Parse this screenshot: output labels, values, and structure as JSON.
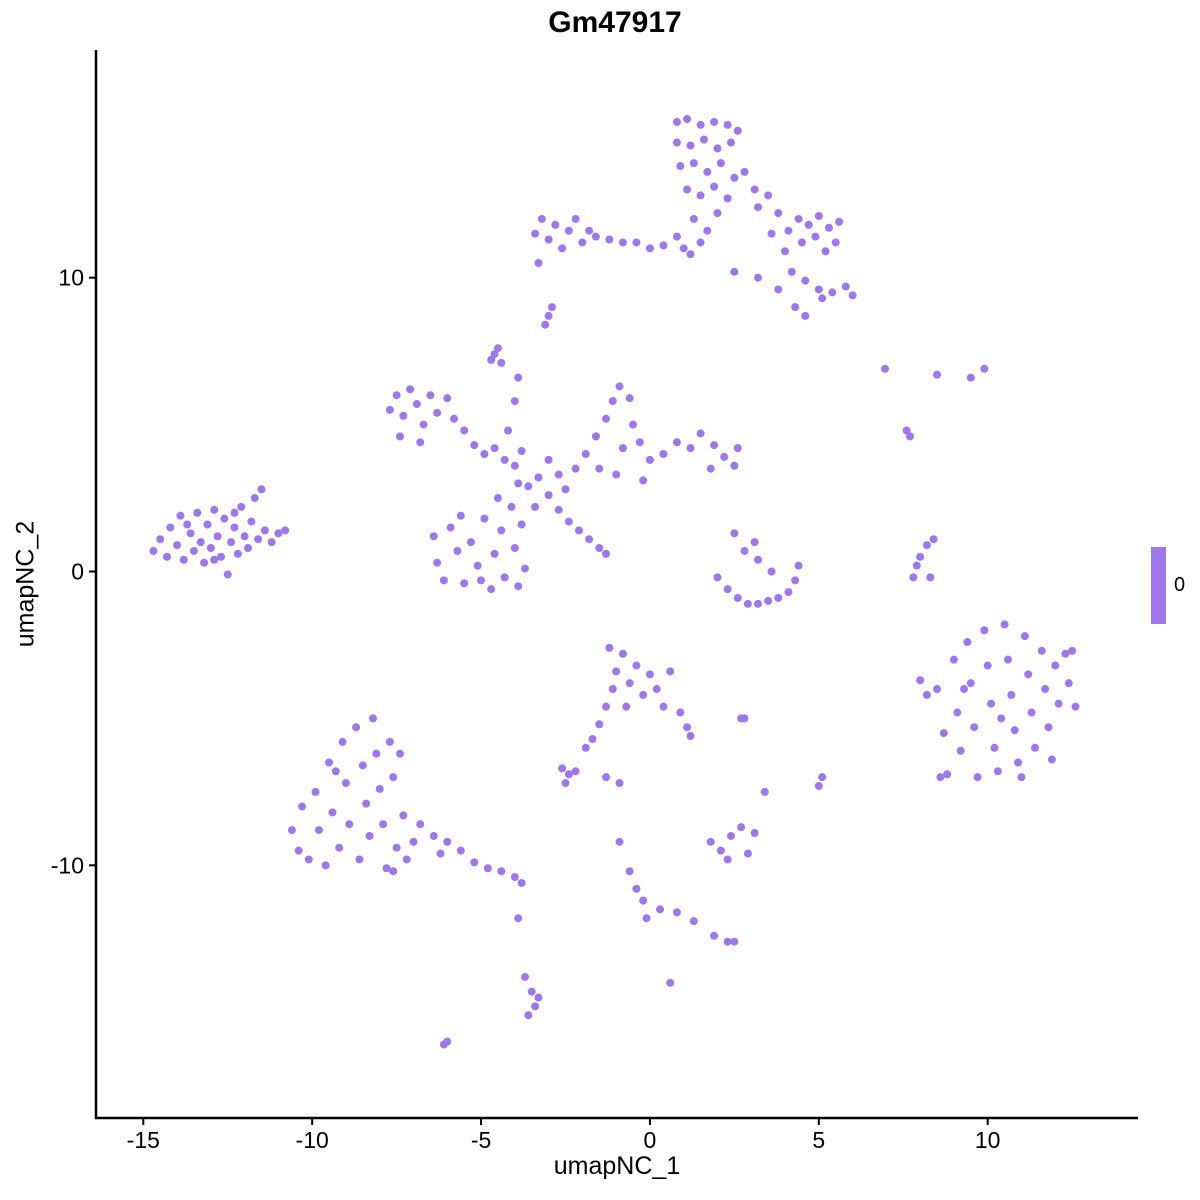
{
  "chart_data": {
    "type": "scatter",
    "title": "Gm47917",
    "xlabel": "umapNC_1",
    "ylabel": "umapNC_2",
    "xlim": [
      -16.4,
      14.45
    ],
    "ylim": [
      -18.6,
      17.75
    ],
    "xticks": [
      -15,
      -10,
      -5,
      0,
      5,
      10
    ],
    "yticks": [
      -10,
      0,
      10
    ],
    "xtick_labels": [
      "-15",
      "-10",
      "-5",
      "0",
      "5",
      "10"
    ],
    "ytick_labels": [
      "-10",
      "0",
      "10"
    ],
    "grid": false,
    "legend": {
      "position": "right",
      "type": "colorbar",
      "labels": [
        "0"
      ],
      "color": "#9E77E8"
    },
    "point_color": "#9E77E8",
    "expression_value": 0,
    "points": [
      [
        -14.7,
        0.7
      ],
      [
        -14.5,
        1.1
      ],
      [
        -14.3,
        0.5
      ],
      [
        -14.2,
        1.5
      ],
      [
        -14,
        0.9
      ],
      [
        -13.9,
        1.9
      ],
      [
        -13.8,
        0.4
      ],
      [
        -13.6,
        1.3
      ],
      [
        -13.5,
        0.7
      ],
      [
        -13.4,
        2.0
      ],
      [
        -13.3,
        1.0
      ],
      [
        -13.2,
        0.3
      ],
      [
        -13.1,
        1.6
      ],
      [
        -13,
        0.8
      ],
      [
        -12.9,
        2.1
      ],
      [
        -12.8,
        1.2
      ],
      [
        -12.7,
        0.5
      ],
      [
        -12.6,
        1.8
      ],
      [
        -12.5,
        -0.1
      ],
      [
        -12.4,
        1.0
      ],
      [
        -12.3,
        1.5
      ],
      [
        -12.2,
        0.6
      ],
      [
        -12.1,
        2.2
      ],
      [
        -12,
        1.2
      ],
      [
        -11.9,
        0.8
      ],
      [
        -11.8,
        1.7
      ],
      [
        -11.7,
        2.5
      ],
      [
        -11.6,
        1.1
      ],
      [
        -11.5,
        2.8
      ],
      [
        -11.4,
        1.4
      ],
      [
        -11.2,
        1.0
      ],
      [
        -11,
        1.3
      ],
      [
        -10.8,
        1.4
      ],
      [
        -13.7,
        1.6
      ],
      [
        -12.9,
        0.4
      ],
      [
        -12.3,
        2.0
      ],
      [
        -3.4,
        11.5
      ],
      [
        -3.2,
        12.0
      ],
      [
        -3.0,
        11.3
      ],
      [
        -2.8,
        11.8
      ],
      [
        -2.6,
        11.0
      ],
      [
        -2.4,
        11.6
      ],
      [
        -2.2,
        12.0
      ],
      [
        -2.0,
        11.2
      ],
      [
        -1.8,
        11.6
      ],
      [
        -1.6,
        11.4
      ],
      [
        -3.3,
        10.5
      ],
      [
        -1.2,
        11.3
      ],
      [
        -0.8,
        11.2
      ],
      [
        -0.4,
        11.2
      ],
      [
        0.0,
        11.0
      ],
      [
        0.4,
        11.1
      ],
      [
        0.8,
        11.4
      ],
      [
        1.0,
        11.0
      ],
      [
        1.2,
        10.8
      ],
      [
        1.5,
        11.2
      ],
      [
        0.8,
        15.3
      ],
      [
        1.1,
        15.4
      ],
      [
        1.5,
        15.2
      ],
      [
        1.9,
        15.3
      ],
      [
        2.3,
        15.2
      ],
      [
        2.6,
        15.0
      ],
      [
        0.8,
        14.6
      ],
      [
        1.2,
        14.5
      ],
      [
        1.6,
        14.7
      ],
      [
        2.0,
        14.4
      ],
      [
        2.4,
        14.6
      ],
      [
        0.9,
        13.8
      ],
      [
        1.3,
        13.9
      ],
      [
        1.7,
        13.6
      ],
      [
        2.1,
        13.9
      ],
      [
        2.5,
        13.4
      ],
      [
        1.1,
        13.0
      ],
      [
        1.5,
        12.8
      ],
      [
        1.9,
        13.1
      ],
      [
        2.3,
        12.7
      ],
      [
        1.3,
        12.0
      ],
      [
        1.7,
        11.6
      ],
      [
        2.0,
        12.2
      ],
      [
        2.8,
        13.6
      ],
      [
        3.1,
        13.0
      ],
      [
        3.2,
        12.4
      ],
      [
        3.5,
        12.8
      ],
      [
        3.8,
        12.2
      ],
      [
        4.1,
        11.6
      ],
      [
        4.4,
        12.0
      ],
      [
        4.7,
        11.8
      ],
      [
        5.0,
        12.1
      ],
      [
        5.3,
        11.7
      ],
      [
        5.6,
        11.9
      ],
      [
        3.6,
        11.5
      ],
      [
        4.0,
        10.9
      ],
      [
        4.5,
        11.2
      ],
      [
        4.9,
        11.4
      ],
      [
        5.2,
        10.9
      ],
      [
        5.5,
        11.2
      ],
      [
        4.2,
        10.2
      ],
      [
        4.6,
        9.9
      ],
      [
        5.0,
        9.6
      ],
      [
        5.4,
        9.5
      ],
      [
        5.8,
        9.7
      ],
      [
        6.0,
        9.4
      ],
      [
        4.3,
        9.0
      ],
      [
        4.6,
        8.7
      ],
      [
        5.1,
        9.3
      ],
      [
        2.5,
        10.2
      ],
      [
        3.2,
        10.0
      ],
      [
        3.8,
        9.6
      ],
      [
        -3.0,
        8.7
      ],
      [
        -3.1,
        8.4
      ],
      [
        -2.9,
        9.0
      ],
      [
        -4.6,
        7.4
      ],
      [
        -4.5,
        7.6
      ],
      [
        -4.7,
        7.2
      ],
      [
        -4.4,
        7.1
      ],
      [
        -7.7,
        5.5
      ],
      [
        -7.5,
        6.0
      ],
      [
        -7.3,
        5.3
      ],
      [
        -7.1,
        6.2
      ],
      [
        -6.9,
        5.7
      ],
      [
        -6.7,
        5.0
      ],
      [
        -6.5,
        6.0
      ],
      [
        -6.3,
        5.4
      ],
      [
        -6.0,
        5.9
      ],
      [
        -5.8,
        5.2
      ],
      [
        -5.5,
        4.8
      ],
      [
        -5.2,
        4.3
      ],
      [
        -4.9,
        4.0
      ],
      [
        -4.6,
        4.2
      ],
      [
        -4.3,
        3.8
      ],
      [
        -4.0,
        3.6
      ],
      [
        -3.8,
        4.1
      ],
      [
        -7.4,
        4.6
      ],
      [
        -6.8,
        4.4
      ],
      [
        -3.6,
        2.9
      ],
      [
        -3.3,
        3.2
      ],
      [
        -3.0,
        2.6
      ],
      [
        -2.7,
        3.3
      ],
      [
        -3.4,
        2.2
      ],
      [
        -2.5,
        2.8
      ],
      [
        -3.9,
        3.0
      ],
      [
        -3.0,
        3.8
      ],
      [
        -4.2,
        4.8
      ],
      [
        -4.0,
        5.8
      ],
      [
        -3.9,
        6.6
      ],
      [
        -6.4,
        1.2
      ],
      [
        -6.3,
        0.3
      ],
      [
        -6.1,
        -0.3
      ],
      [
        -5.9,
        1.5
      ],
      [
        -5.7,
        0.7
      ],
      [
        -5.5,
        -0.4
      ],
      [
        -5.3,
        1.0
      ],
      [
        -5.1,
        0.2
      ],
      [
        -4.9,
        1.8
      ],
      [
        -4.7,
        -0.6
      ],
      [
        -4.6,
        0.6
      ],
      [
        -4.4,
        1.4
      ],
      [
        -4.3,
        -0.2
      ],
      [
        -4.1,
        2.2
      ],
      [
        -4.0,
        0.8
      ],
      [
        -3.8,
        1.6
      ],
      [
        -3.7,
        0.1
      ],
      [
        -4.5,
        2.5
      ],
      [
        -5.0,
        -0.3
      ],
      [
        -5.6,
        1.9
      ],
      [
        -3.9,
        -0.5
      ],
      [
        -2.2,
        3.5
      ],
      [
        -1.9,
        4.0
      ],
      [
        -1.6,
        4.6
      ],
      [
        -1.3,
        5.2
      ],
      [
        -1.1,
        5.8
      ],
      [
        -0.9,
        6.3
      ],
      [
        -0.6,
        5.9
      ],
      [
        -0.5,
        5.0
      ],
      [
        -0.8,
        4.2
      ],
      [
        -1.5,
        3.5
      ],
      [
        -0.3,
        4.4
      ],
      [
        0.0,
        3.8
      ],
      [
        0.4,
        4.0
      ],
      [
        0.8,
        4.4
      ],
      [
        1.2,
        4.2
      ],
      [
        1.5,
        4.7
      ],
      [
        1.9,
        4.3
      ],
      [
        2.2,
        3.9
      ],
      [
        2.5,
        3.6
      ],
      [
        2.6,
        4.2
      ],
      [
        1.8,
        3.5
      ],
      [
        -1.0,
        3.3
      ],
      [
        -0.2,
        3.1
      ],
      [
        -2.7,
        2.1
      ],
      [
        -2.4,
        1.7
      ],
      [
        -2.1,
        1.4
      ],
      [
        -1.8,
        1.1
      ],
      [
        -1.5,
        0.8
      ],
      [
        -1.3,
        0.6
      ],
      [
        2.0,
        -0.2
      ],
      [
        2.3,
        -0.6
      ],
      [
        2.6,
        -0.9
      ],
      [
        2.9,
        -1.1
      ],
      [
        3.2,
        -1.1
      ],
      [
        3.5,
        -1.0
      ],
      [
        3.8,
        -0.9
      ],
      [
        4.1,
        -0.7
      ],
      [
        4.3,
        -0.3
      ],
      [
        2.8,
        0.7
      ],
      [
        3.1,
        1.0
      ],
      [
        3.2,
        0.4
      ],
      [
        2.5,
        1.3
      ],
      [
        3.6,
        0.0
      ],
      [
        4.4,
        0.2
      ],
      [
        7.8,
        -0.2
      ],
      [
        7.9,
        0.2
      ],
      [
        8.0,
        0.5
      ],
      [
        8.2,
        0.9
      ],
      [
        8.4,
        1.1
      ],
      [
        8.3,
        -0.2
      ],
      [
        6.96,
        6.9
      ],
      [
        8.5,
        6.7
      ],
      [
        9.5,
        6.6
      ],
      [
        9.9,
        6.9
      ],
      [
        7.6,
        4.8
      ],
      [
        7.7,
        4.6
      ],
      [
        8.0,
        -3.7
      ],
      [
        8.2,
        -4.2
      ],
      [
        8.5,
        -4.0
      ],
      [
        8.7,
        -5.5
      ],
      [
        8.8,
        -6.9
      ],
      [
        9.0,
        -3.0
      ],
      [
        9.1,
        -4.8
      ],
      [
        9.2,
        -6.1
      ],
      [
        9.4,
        -2.4
      ],
      [
        9.5,
        -3.8
      ],
      [
        9.6,
        -5.3
      ],
      [
        9.7,
        -7.0
      ],
      [
        9.9,
        -2.0
      ],
      [
        10.0,
        -3.2
      ],
      [
        10.1,
        -4.5
      ],
      [
        10.2,
        -6.0
      ],
      [
        10.3,
        -6.8
      ],
      [
        10.5,
        -1.8
      ],
      [
        10.6,
        -3.0
      ],
      [
        10.7,
        -4.2
      ],
      [
        10.8,
        -5.4
      ],
      [
        10.9,
        -6.5
      ],
      [
        11.1,
        -2.2
      ],
      [
        11.2,
        -3.5
      ],
      [
        11.3,
        -4.8
      ],
      [
        11.4,
        -6.0
      ],
      [
        11.6,
        -2.7
      ],
      [
        11.7,
        -4.0
      ],
      [
        11.8,
        -5.3
      ],
      [
        12.0,
        -3.2
      ],
      [
        12.1,
        -4.5
      ],
      [
        12.3,
        -2.8
      ],
      [
        12.4,
        -3.8
      ],
      [
        12.6,
        -4.6
      ],
      [
        12.5,
        -2.7
      ],
      [
        11.9,
        -6.4
      ],
      [
        9.3,
        -4.0
      ],
      [
        10.4,
        -5.0
      ],
      [
        8.6,
        -7.0
      ],
      [
        11.0,
        -7.0
      ],
      [
        -10.6,
        -8.8
      ],
      [
        -10.4,
        -9.5
      ],
      [
        -10.3,
        -8.0
      ],
      [
        -10.1,
        -9.8
      ],
      [
        -9.9,
        -7.5
      ],
      [
        -9.8,
        -8.8
      ],
      [
        -9.6,
        -10.0
      ],
      [
        -9.5,
        -6.5
      ],
      [
        -9.4,
        -8.2
      ],
      [
        -9.2,
        -9.4
      ],
      [
        -9.1,
        -5.8
      ],
      [
        -9.0,
        -7.2
      ],
      [
        -8.9,
        -8.6
      ],
      [
        -8.7,
        -5.3
      ],
      [
        -8.6,
        -9.8
      ],
      [
        -8.5,
        -6.6
      ],
      [
        -8.4,
        -7.9
      ],
      [
        -8.3,
        -9.0
      ],
      [
        -8.2,
        -5.0
      ],
      [
        -8.1,
        -6.2
      ],
      [
        -8.0,
        -7.4
      ],
      [
        -7.9,
        -8.6
      ],
      [
        -7.8,
        -10.1
      ],
      [
        -7.7,
        -5.8
      ],
      [
        -7.6,
        -7.0
      ],
      [
        -7.5,
        -9.4
      ],
      [
        -7.4,
        -6.2
      ],
      [
        -7.3,
        -8.3
      ],
      [
        -7.2,
        -9.8
      ],
      [
        -7.6,
        -10.2
      ],
      [
        -6.8,
        -8.6
      ],
      [
        -6.4,
        -9.0
      ],
      [
        -6.0,
        -9.2
      ],
      [
        -5.6,
        -9.5
      ],
      [
        -5.2,
        -9.9
      ],
      [
        -4.8,
        -10.1
      ],
      [
        -4.4,
        -10.2
      ],
      [
        -4.0,
        -10.4
      ],
      [
        -3.8,
        -10.6
      ],
      [
        -6.2,
        -9.6
      ],
      [
        -7.0,
        -9.2
      ],
      [
        -9.3,
        -6.8
      ],
      [
        -1.2,
        -2.6
      ],
      [
        -1.0,
        -3.4
      ],
      [
        -0.8,
        -2.8
      ],
      [
        -0.6,
        -3.8
      ],
      [
        -0.4,
        -3.2
      ],
      [
        -0.2,
        -4.2
      ],
      [
        0.0,
        -3.5
      ],
      [
        0.2,
        -4.0
      ],
      [
        -1.1,
        -4.0
      ],
      [
        -0.7,
        -4.6
      ],
      [
        0.4,
        -4.6
      ],
      [
        0.6,
        -3.4
      ],
      [
        0.9,
        -4.8
      ],
      [
        1.1,
        -5.3
      ],
      [
        1.2,
        -5.6
      ],
      [
        -1.3,
        -4.6
      ],
      [
        -1.5,
        -5.2
      ],
      [
        -1.7,
        -5.7
      ],
      [
        -1.9,
        -6.0
      ],
      [
        -2.6,
        -6.7
      ],
      [
        -2.4,
        -6.9
      ],
      [
        -2.2,
        -6.8
      ],
      [
        -2.5,
        -7.2
      ],
      [
        -1.3,
        -7.0
      ],
      [
        -0.9,
        -7.2
      ],
      [
        1.8,
        -9.2
      ],
      [
        2.1,
        -9.5
      ],
      [
        2.4,
        -9.0
      ],
      [
        2.7,
        -8.7
      ],
      [
        2.9,
        -9.6
      ],
      [
        2.3,
        -9.8
      ],
      [
        3.1,
        -8.9
      ],
      [
        3.4,
        -7.5
      ],
      [
        5.0,
        -7.3
      ],
      [
        5.1,
        -7.0
      ],
      [
        2.7,
        -5.0
      ],
      [
        2.8,
        -5.0
      ],
      [
        -0.9,
        -9.2
      ],
      [
        -0.6,
        -10.2
      ],
      [
        -0.4,
        -10.8
      ],
      [
        -0.2,
        -11.2
      ],
      [
        -0.1,
        -11.8
      ],
      [
        0.3,
        -11.5
      ],
      [
        0.8,
        -11.6
      ],
      [
        1.3,
        -11.9
      ],
      [
        1.9,
        -12.4
      ],
      [
        2.3,
        -12.6
      ],
      [
        2.5,
        -12.6
      ],
      [
        0.6,
        -14.0
      ],
      [
        -3.9,
        -11.8
      ],
      [
        -3.7,
        -13.8
      ],
      [
        -3.5,
        -14.3
      ],
      [
        -3.4,
        -14.8
      ],
      [
        -3.6,
        -15.1
      ],
      [
        -3.3,
        -14.5
      ],
      [
        -6.1,
        -16.1
      ],
      [
        -6.0,
        -16.0
      ]
    ]
  }
}
